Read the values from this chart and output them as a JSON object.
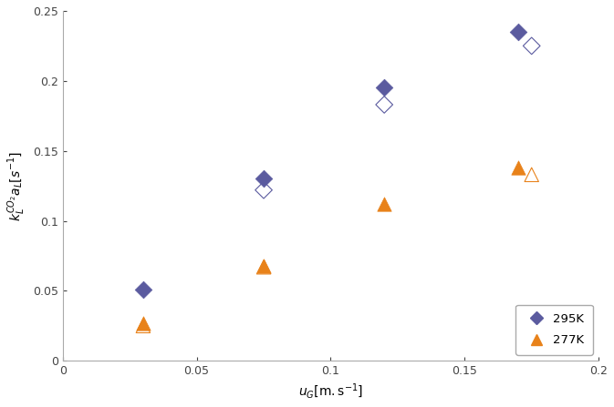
{
  "series": [
    {
      "label": "295K",
      "x": [
        0.03,
        0.075,
        0.12,
        0.17
      ],
      "y": [
        0.051,
        0.13,
        0.195,
        0.235
      ],
      "color": "#5b5b9f",
      "marker": "D",
      "filled": true,
      "markersize": 6
    },
    {
      "label": "_open_295K",
      "x": [
        0.075,
        0.12,
        0.175
      ],
      "y": [
        0.122,
        0.183,
        0.225
      ],
      "color": "#5b5b9f",
      "marker": "D",
      "filled": false,
      "markersize": 6
    },
    {
      "label": "277K",
      "x": [
        0.03,
        0.075,
        0.12,
        0.17
      ],
      "y": [
        0.027,
        0.068,
        0.112,
        0.138
      ],
      "color": "#e8821a",
      "marker": "^",
      "filled": true,
      "markersize": 7
    },
    {
      "label": "_open_277K",
      "x": [
        0.03,
        0.075,
        0.175
      ],
      "y": [
        0.025,
        0.067,
        0.133
      ],
      "color": "#e8821a",
      "marker": "^",
      "filled": false,
      "markersize": 7
    }
  ],
  "xlabel": "$u_{G}\\left[\\mathrm{m.s}^{-1}\\right]$",
  "ylabel": "$k_L^{CO_2}a_L\\left[s^{-1}\\right]$",
  "xlim": [
    0,
    0.2
  ],
  "ylim": [
    0,
    0.25
  ],
  "xticks": [
    0,
    0.05,
    0.1,
    0.15,
    0.2
  ],
  "yticks": [
    0,
    0.05,
    0.1,
    0.15,
    0.2,
    0.25
  ],
  "legend_labels": [
    "295K",
    "277K"
  ],
  "legend_colors": [
    "#5b5b9f",
    "#e8821a"
  ],
  "legend_markers": [
    "D",
    "^"
  ],
  "legend_markersizes": [
    7,
    8
  ],
  "spine_color": "#aaaaaa",
  "tick_color": "#444444",
  "background_color": "#ffffff"
}
